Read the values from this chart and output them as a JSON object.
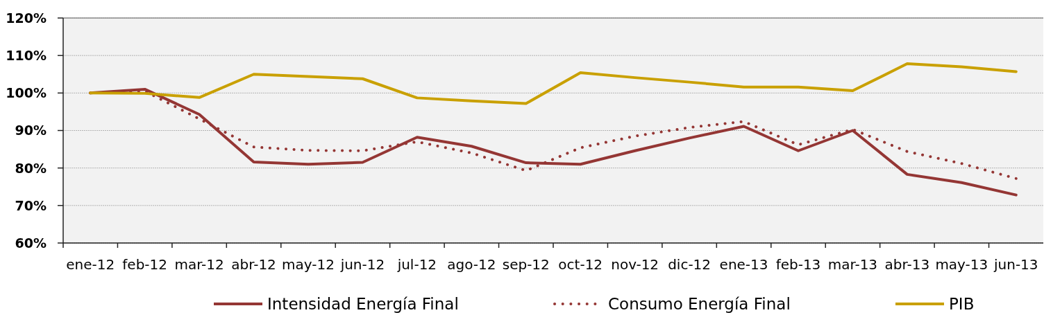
{
  "chart_data": {
    "type": "line",
    "categories": [
      "ene-12",
      "feb-12",
      "mar-12",
      "abr-12",
      "may-12",
      "jun-12",
      "jul-12",
      "ago-12",
      "sep-12",
      "oct-12",
      "nov-12",
      "dic-12",
      "ene-13",
      "feb-13",
      "mar-13",
      "abr-13",
      "may-13",
      "jun-13"
    ],
    "series": [
      {
        "name": "Intensidad Energía Final",
        "color": "#943634",
        "line_style": "solid",
        "values": [
          100,
          101.0,
          94.3,
          81.6,
          81.0,
          81.5,
          88.2,
          85.8,
          81.4,
          81.0,
          84.6,
          88.0,
          91.1,
          84.6,
          90.0,
          78.3,
          76.1,
          72.8
        ]
      },
      {
        "name": "Consumo Energía Final",
        "color": "#943634",
        "line_style": "dotted",
        "values": [
          100,
          100.5,
          93.1,
          85.6,
          84.7,
          84.6,
          87.0,
          84.0,
          79.3,
          85.4,
          88.5,
          90.8,
          92.4,
          86.2,
          90.3,
          84.4,
          81.2,
          77.2
        ]
      },
      {
        "name": "PIB",
        "color": "#c9a000",
        "line_style": "solid",
        "values": [
          100,
          99.9,
          98.8,
          105.0,
          104.4,
          103.8,
          98.7,
          97.9,
          97.2,
          105.4,
          104.1,
          102.9,
          101.6,
          101.6,
          100.6,
          107.8,
          107.0,
          105.7
        ]
      }
    ],
    "ylim": [
      60,
      120
    ],
    "yticks": [
      {
        "value": 60,
        "label": "60%"
      },
      {
        "value": 70,
        "label": "70%"
      },
      {
        "value": 80,
        "label": "80%"
      },
      {
        "value": 90,
        "label": "90%"
      },
      {
        "value": 100,
        "label": "100%"
      },
      {
        "value": 110,
        "label": "110%"
      },
      {
        "value": 120,
        "label": "120%"
      }
    ],
    "grid": "y",
    "legend": "bottom"
  }
}
